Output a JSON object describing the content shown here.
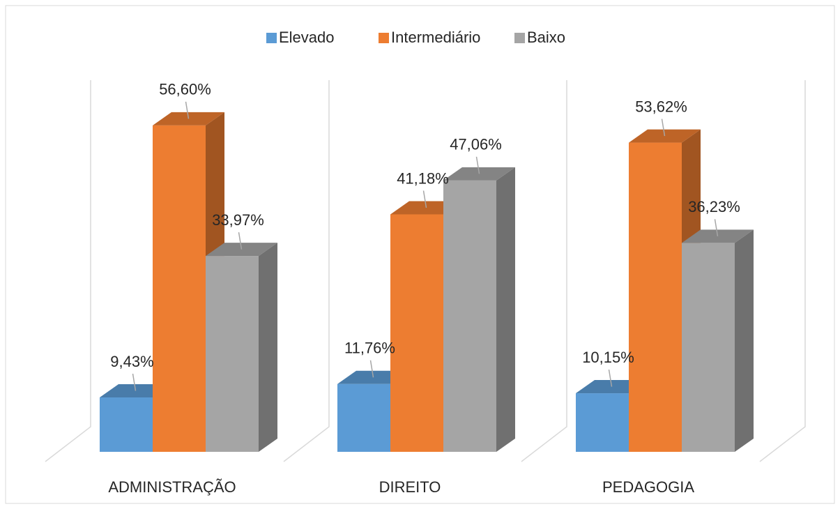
{
  "chart_data": {
    "type": "bar3d",
    "categories": [
      "ADMINISTRAÇÃO",
      "DIREITO",
      "PEDAGOGIA"
    ],
    "series": [
      {
        "name": "Elevado",
        "color": "#5b9bd5",
        "values": [
          9.43,
          11.76,
          10.15
        ],
        "value_labels": [
          "9,43%",
          "11,76%",
          "10,15%"
        ]
      },
      {
        "name": "Intermediário",
        "color": "#ed7d31",
        "values": [
          56.6,
          41.18,
          53.62
        ],
        "value_labels": [
          "56,60%",
          "41,18%",
          "53,62%"
        ]
      },
      {
        "name": "Baixo",
        "color": "#a5a5a5",
        "values": [
          33.97,
          47.06,
          36.23
        ],
        "value_labels": [
          "33,97%",
          "47,06%",
          "36,23%"
        ]
      }
    ],
    "legend": "top"
  }
}
